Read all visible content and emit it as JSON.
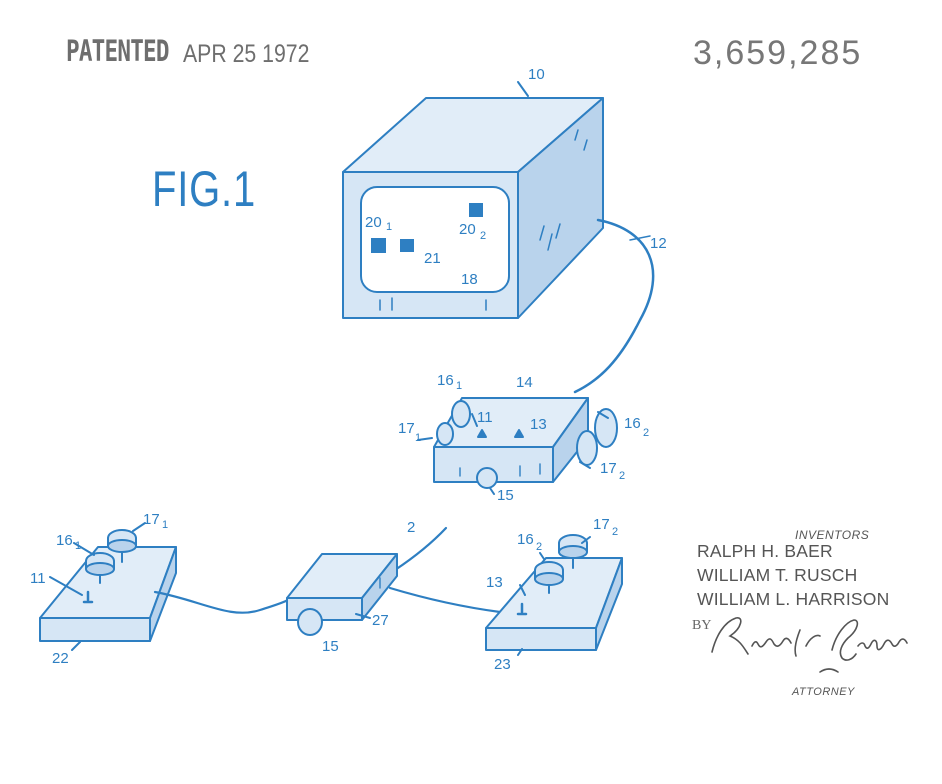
{
  "header": {
    "stamp_patented": "PATENTED",
    "stamp_date": "APR 25 1972",
    "patent_number": "3,659,285"
  },
  "figure": {
    "label": "FIG.1",
    "refs": {
      "r10": "10",
      "r12": "12",
      "r14": "14",
      "r20a": "20",
      "r20a_sub": "1",
      "r20b": "20",
      "r20b_sub": "2",
      "r21": "21",
      "r18": "18",
      "r16a": "16",
      "r16a_sub": "1",
      "r16b": "16",
      "r16b_sub": "2",
      "r17a": "17",
      "r17a_sub": "1",
      "r17b": "17",
      "r17b_sub": "2",
      "r11": "11",
      "r13": "13",
      "r15": "15",
      "r2": "2",
      "r27": "27",
      "r15b": "15",
      "r22": "22",
      "r23": "23",
      "r11b": "11",
      "r13b": "13",
      "r16c": "16",
      "r16c_sub": "1",
      "r17c": "17",
      "r17c_sub": "1",
      "r16d": "16",
      "r16d_sub": "2",
      "r17d": "17",
      "r17d_sub": "2"
    }
  },
  "inventors": {
    "heading": "INVENTORS",
    "names": [
      "RALPH H. BAER",
      "WILLIAM T. RUSCH",
      "WILLIAM L. HARRISON"
    ]
  },
  "attorney": {
    "by": "BY",
    "label": "ATTORNEY"
  },
  "colors": {
    "ink": "#2e7fc2",
    "fill_light": "#d6e6f5",
    "fill_mid": "#b9d3ec",
    "stamp": "#6e6e6e"
  }
}
